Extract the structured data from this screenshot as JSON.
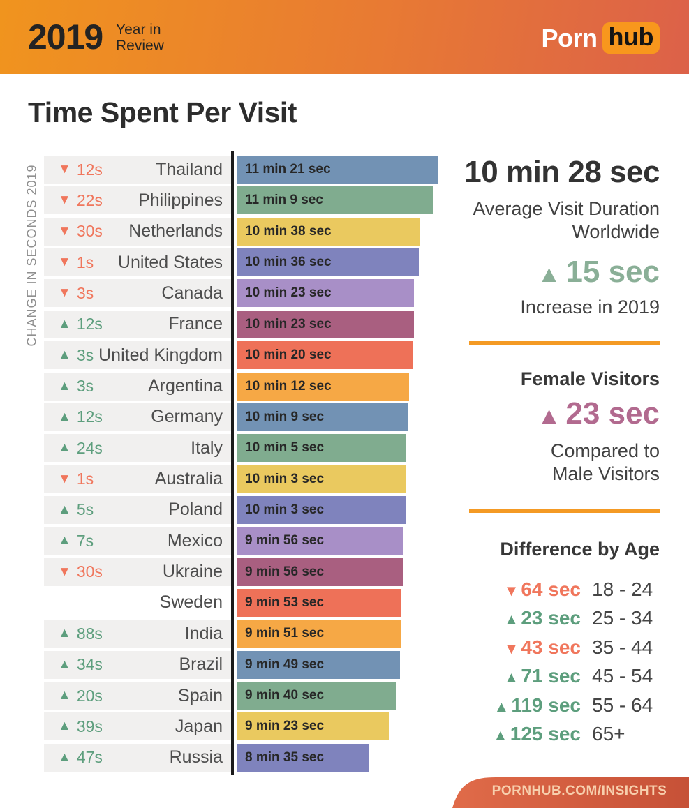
{
  "header": {
    "year": "2019",
    "subtitle_line1": "Year in",
    "subtitle_line2": "Review",
    "logo_part1": "Porn",
    "logo_part2": "hub"
  },
  "title": "Time Spent Per Visit",
  "colors": {
    "up_green": "#5d9e7d",
    "down_red": "#f0765c",
    "big_green": "#8aaf97",
    "mauve": "#b26a8f",
    "divider_orange": "#f49a24",
    "header_gradient": [
      "#f0941e",
      "#dc6149"
    ],
    "footer_gradient": [
      "#e06b49",
      "#c65137"
    ]
  },
  "chart_data": {
    "type": "bar",
    "title": "Time Spent Per Visit",
    "ylabel": "CHANGE IN SECONDS 2019",
    "value_format": "min:sec",
    "rows": [
      {
        "country": "Thailand",
        "duration_label": "11 min 21 sec",
        "duration_seconds": 681,
        "change_label": "12s",
        "change_dir": "down",
        "bar_color": "#7292b4"
      },
      {
        "country": "Philippines",
        "duration_label": "11 min 9 sec",
        "duration_seconds": 669,
        "change_label": "22s",
        "change_dir": "down",
        "bar_color": "#80ac8f"
      },
      {
        "country": "Netherlands",
        "duration_label": "10 min 38 sec",
        "duration_seconds": 638,
        "change_label": "30s",
        "change_dir": "down",
        "bar_color": "#eac95f"
      },
      {
        "country": "United States",
        "duration_label": "10 min 36 sec",
        "duration_seconds": 636,
        "change_label": "1s",
        "change_dir": "down",
        "bar_color": "#7f83bd"
      },
      {
        "country": "Canada",
        "duration_label": "10 min 23 sec",
        "duration_seconds": 623,
        "change_label": "3s",
        "change_dir": "down",
        "bar_color": "#a88fc7"
      },
      {
        "country": "France",
        "duration_label": "10 min 23 sec",
        "duration_seconds": 623,
        "change_label": "12s",
        "change_dir": "up",
        "bar_color": "#a95f80"
      },
      {
        "country": "United Kingdom",
        "duration_label": "10 min 20 sec",
        "duration_seconds": 620,
        "change_label": "3s",
        "change_dir": "up",
        "bar_color": "#ee7158"
      },
      {
        "country": "Argentina",
        "duration_label": "10 min 12 sec",
        "duration_seconds": 612,
        "change_label": "3s",
        "change_dir": "up",
        "bar_color": "#f6a845"
      },
      {
        "country": "Germany",
        "duration_label": "10 min 9 sec",
        "duration_seconds": 609,
        "change_label": "12s",
        "change_dir": "up",
        "bar_color": "#7292b4"
      },
      {
        "country": "Italy",
        "duration_label": "10 min 5 sec",
        "duration_seconds": 605,
        "change_label": "24s",
        "change_dir": "up",
        "bar_color": "#80ac8f"
      },
      {
        "country": "Australia",
        "duration_label": "10 min 3 sec",
        "duration_seconds": 603,
        "change_label": "1s",
        "change_dir": "down",
        "bar_color": "#eac95f"
      },
      {
        "country": "Poland",
        "duration_label": "10 min 3 sec",
        "duration_seconds": 603,
        "change_label": "5s",
        "change_dir": "up",
        "bar_color": "#7f83bd"
      },
      {
        "country": "Mexico",
        "duration_label": "9 min 56 sec",
        "duration_seconds": 596,
        "change_label": "7s",
        "change_dir": "up",
        "bar_color": "#a88fc7"
      },
      {
        "country": "Ukraine",
        "duration_label": "9 min 56 sec",
        "duration_seconds": 596,
        "change_label": "30s",
        "change_dir": "down",
        "bar_color": "#a95f80"
      },
      {
        "country": "Sweden",
        "duration_label": "9 min 53 sec",
        "duration_seconds": 593,
        "change_label": null,
        "change_dir": null,
        "bar_color": "#ee7158",
        "no_card": true
      },
      {
        "country": "India",
        "duration_label": "9 min 51 sec",
        "duration_seconds": 591,
        "change_label": "88s",
        "change_dir": "up",
        "bar_color": "#f6a845"
      },
      {
        "country": "Brazil",
        "duration_label": "9 min 49 sec",
        "duration_seconds": 589,
        "change_label": "34s",
        "change_dir": "up",
        "bar_color": "#7292b4"
      },
      {
        "country": "Spain",
        "duration_label": "9 min 40 sec",
        "duration_seconds": 580,
        "change_label": "20s",
        "change_dir": "up",
        "bar_color": "#80ac8f"
      },
      {
        "country": "Japan",
        "duration_label": "9 min 23 sec",
        "duration_seconds": 563,
        "change_label": "39s",
        "change_dir": "up",
        "bar_color": "#eac95f"
      },
      {
        "country": "Russia",
        "duration_label": "8 min 35 sec",
        "duration_seconds": 515,
        "change_label": "47s",
        "change_dir": "up",
        "bar_color": "#7f83bd"
      }
    ]
  },
  "right_panel": {
    "average_duration": "10 min 28 sec",
    "average_duration_sub": "Average Visit Duration\nWorldwide",
    "increase_value": "15 sec",
    "increase_dir": "up",
    "increase_sub": "Increase in 2019",
    "female_title": "Female Visitors",
    "female_value": "23 sec",
    "female_dir": "up",
    "female_sub": "Compared to\nMale Visitors",
    "age_title": "Difference by Age",
    "age_rows": [
      {
        "value": "64 sec",
        "dir": "down",
        "age": "18 - 24"
      },
      {
        "value": "23 sec",
        "dir": "up",
        "age": "25 - 34"
      },
      {
        "value": "43 sec",
        "dir": "down",
        "age": "35 - 44"
      },
      {
        "value": "71 sec",
        "dir": "up",
        "age": "45 - 54"
      },
      {
        "value": "119 sec",
        "dir": "up",
        "age": "55 - 64"
      },
      {
        "value": "125 sec",
        "dir": "up",
        "age": "65+"
      }
    ]
  },
  "footer": {
    "label": "PORNHUB.COM/INSIGHTS"
  }
}
